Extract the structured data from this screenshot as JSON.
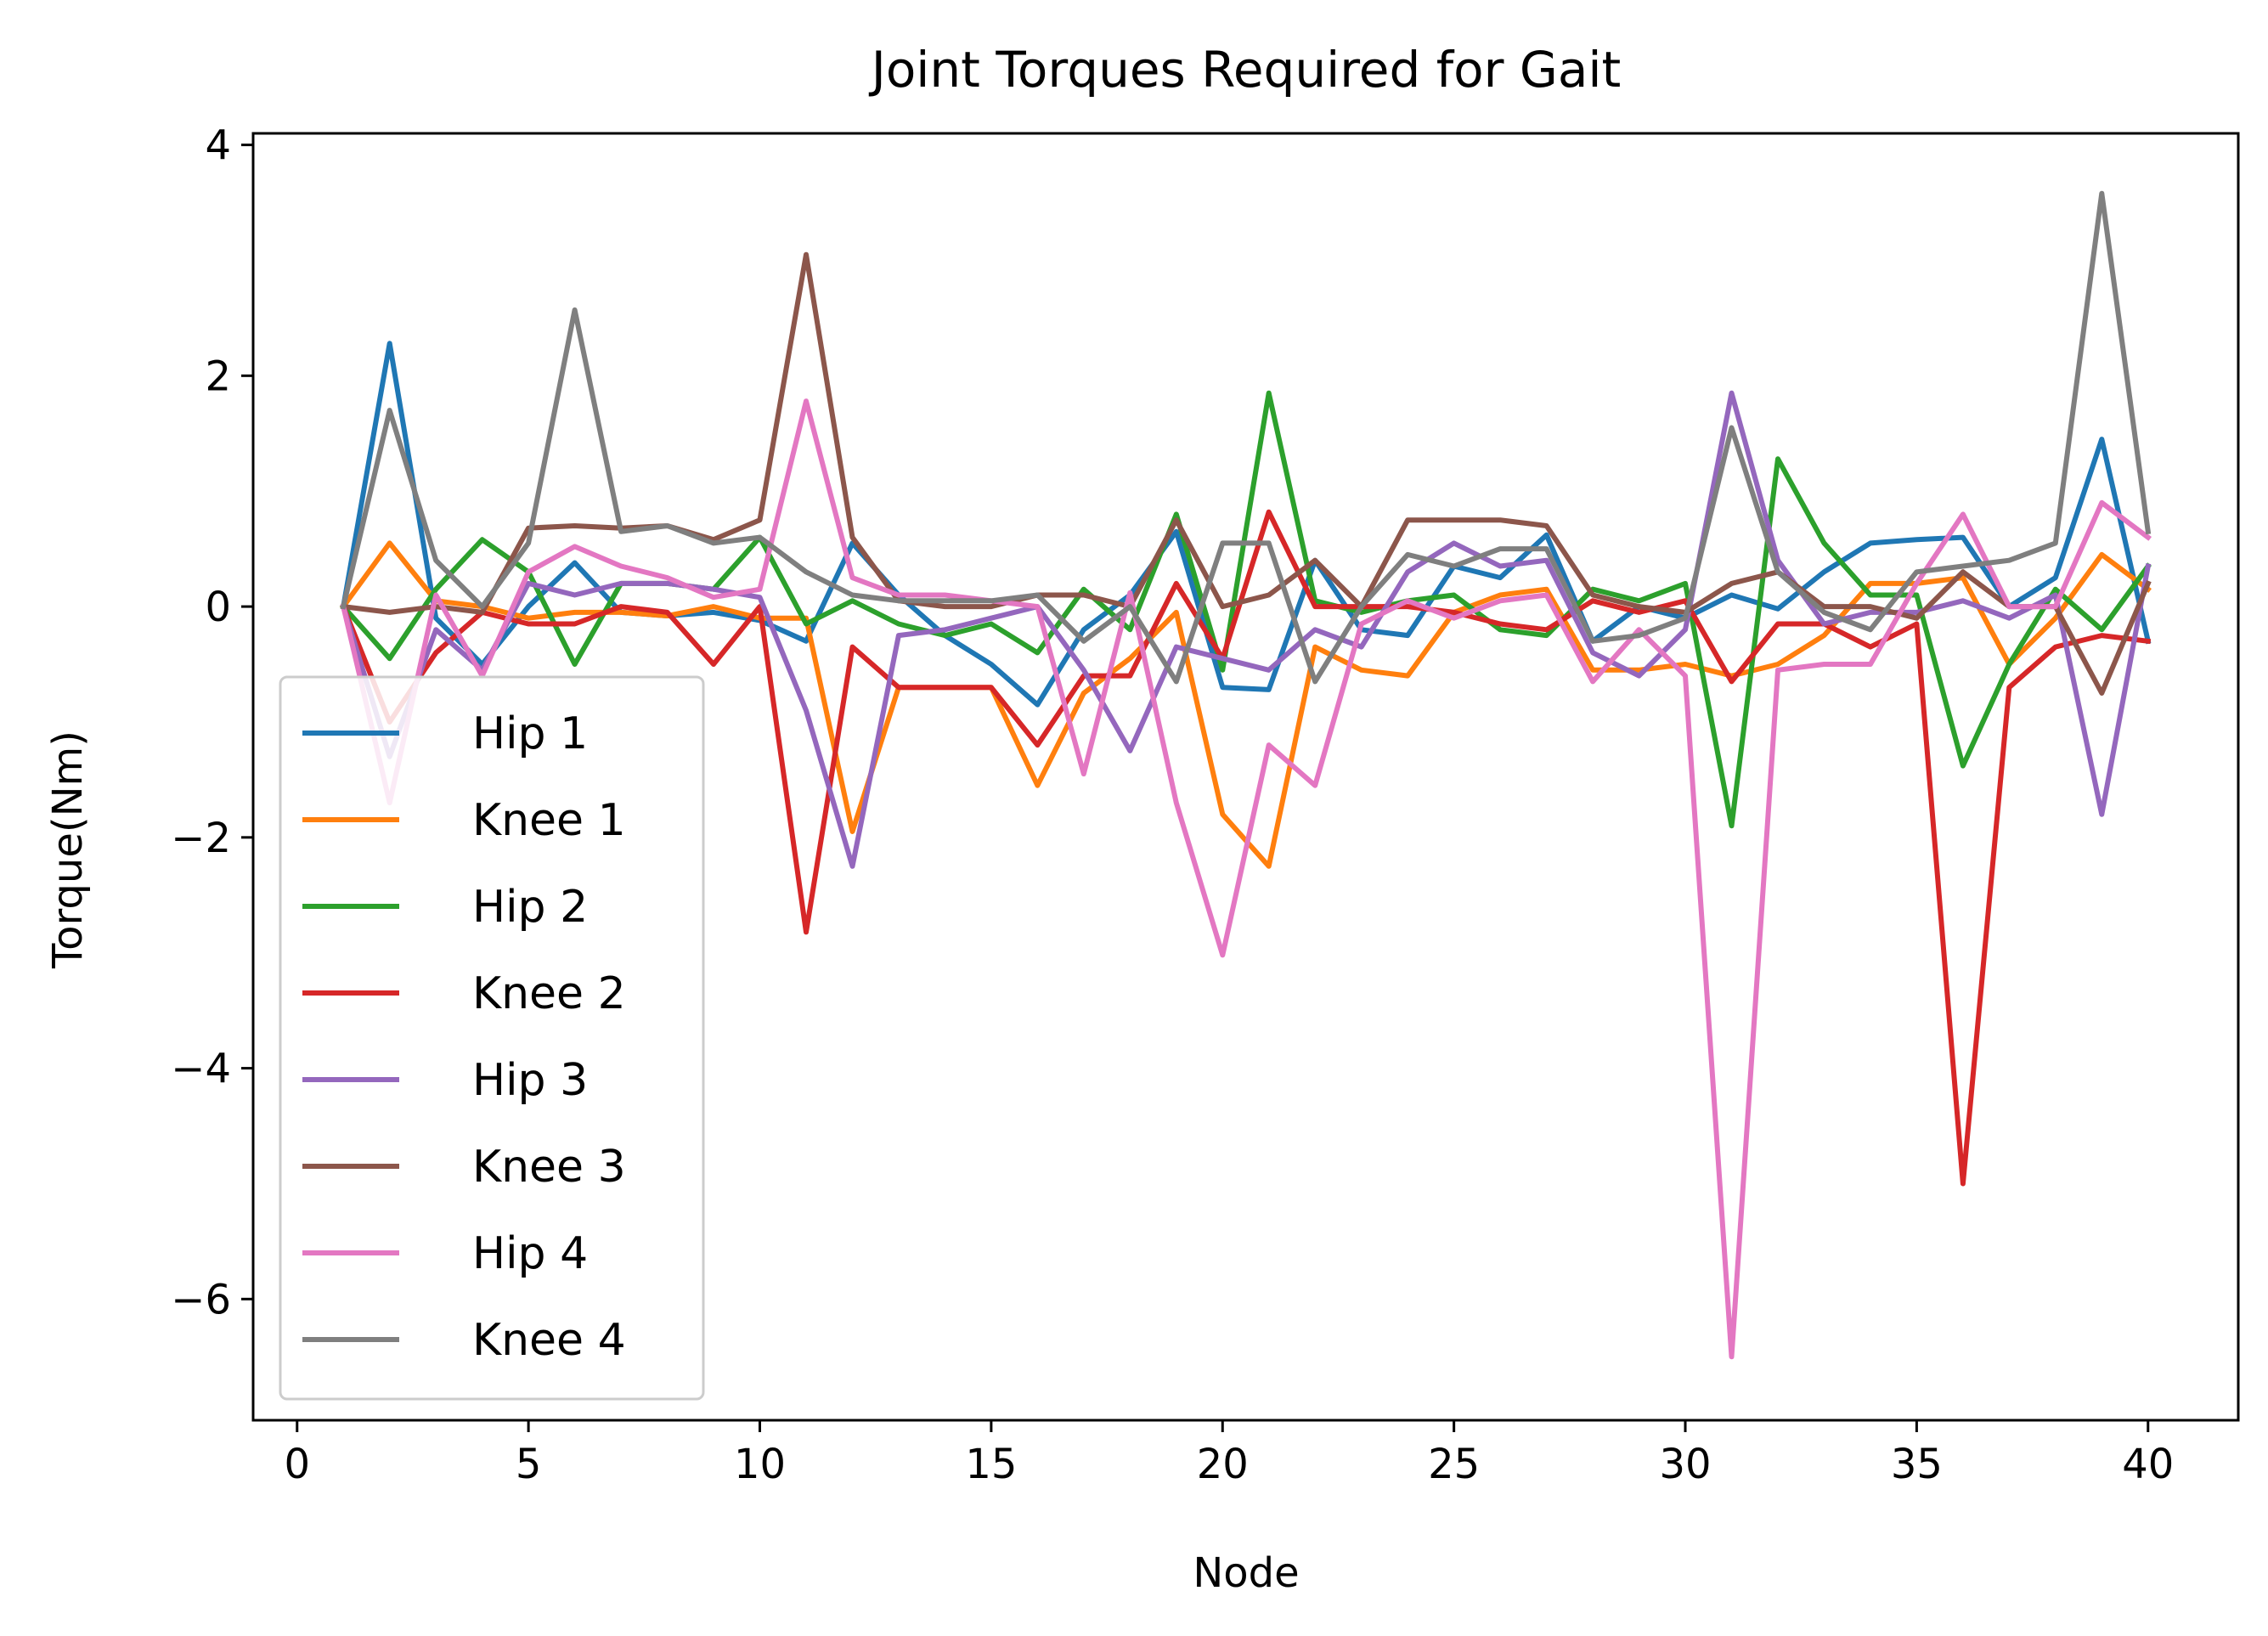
{
  "chart_data": {
    "type": "line",
    "title": "Joint Torques Required for Gait",
    "xlabel": "Node",
    "ylabel": "Torque(Nm)",
    "xlim": [
      -0.95,
      41.95
    ],
    "ylim": [
      -7.05,
      4.1
    ],
    "xticks": [
      0,
      5,
      10,
      15,
      20,
      25,
      30,
      35,
      40
    ],
    "yticks": [
      4,
      2,
      0,
      -2,
      -4,
      -6
    ],
    "ytick_labels": [
      "4",
      "2",
      "0",
      "−2",
      "−4",
      "−6"
    ],
    "grid": false,
    "legend_position": "lower-left",
    "x": [
      1,
      2,
      3,
      4,
      5,
      6,
      7,
      8,
      9,
      10,
      11,
      12,
      13,
      14,
      15,
      16,
      17,
      18,
      19,
      20,
      21,
      22,
      23,
      24,
      25,
      26,
      27,
      28,
      29,
      30,
      31,
      32,
      33,
      34,
      35,
      36,
      37,
      38,
      39,
      40
    ],
    "series": [
      {
        "name": "Hip 1",
        "color": "#1f77b4",
        "values": [
          0.0,
          2.28,
          -0.1,
          -0.5,
          0.0,
          0.38,
          -0.05,
          -0.08,
          -0.05,
          -0.12,
          -0.3,
          0.55,
          0.1,
          -0.25,
          -0.5,
          -0.85,
          -0.2,
          0.1,
          0.65,
          -0.7,
          -0.72,
          0.4,
          -0.2,
          -0.25,
          0.35,
          0.25,
          0.62,
          -0.3,
          0.0,
          -0.1,
          0.1,
          -0.02,
          0.3,
          0.55,
          0.58,
          0.6,
          0.0,
          0.25,
          1.45,
          -0.3
        ]
      },
      {
        "name": "Knee 1",
        "color": "#ff7f0e",
        "values": [
          0.0,
          0.55,
          0.05,
          0.0,
          -0.1,
          -0.05,
          -0.05,
          -0.08,
          0.0,
          -0.1,
          -0.1,
          -1.95,
          -0.7,
          -0.7,
          -0.7,
          -1.55,
          -0.75,
          -0.45,
          -0.05,
          -1.8,
          -2.25,
          -0.35,
          -0.55,
          -0.6,
          -0.05,
          0.1,
          0.15,
          -0.55,
          -0.55,
          -0.5,
          -0.6,
          -0.5,
          -0.25,
          0.2,
          0.2,
          0.25,
          -0.5,
          -0.1,
          0.45,
          0.15
        ]
      },
      {
        "name": "Hip 2",
        "color": "#2ca02c",
        "values": [
          0.0,
          -0.45,
          0.15,
          0.58,
          0.3,
          -0.5,
          0.2,
          0.2,
          0.15,
          0.6,
          -0.15,
          0.05,
          -0.15,
          -0.25,
          -0.15,
          -0.4,
          0.15,
          -0.2,
          0.8,
          -0.55,
          1.85,
          0.05,
          -0.05,
          0.05,
          0.1,
          -0.2,
          -0.25,
          0.15,
          0.05,
          0.2,
          -1.9,
          1.28,
          0.55,
          0.1,
          0.1,
          -1.38,
          -0.5,
          0.15,
          -0.2,
          0.35
        ]
      },
      {
        "name": "Knee 2",
        "color": "#d62728",
        "values": [
          0.0,
          -1.0,
          -0.4,
          -0.05,
          -0.15,
          -0.15,
          0.0,
          -0.05,
          -0.5,
          0.0,
          -2.82,
          -0.35,
          -0.7,
          -0.7,
          -0.7,
          -1.2,
          -0.6,
          -0.6,
          0.2,
          -0.45,
          0.82,
          0.0,
          0.0,
          0.0,
          -0.05,
          -0.15,
          -0.2,
          0.05,
          -0.05,
          0.05,
          -0.65,
          -0.15,
          -0.15,
          -0.35,
          -0.15,
          -5.0,
          -0.7,
          -0.35,
          -0.25,
          -0.3
        ]
      },
      {
        "name": "Hip 3",
        "color": "#9467bd",
        "values": [
          0.0,
          -1.3,
          -0.2,
          -0.55,
          0.2,
          0.1,
          0.2,
          0.2,
          0.15,
          0.08,
          -0.9,
          -2.25,
          -0.25,
          -0.2,
          -0.1,
          0.0,
          -0.55,
          -1.25,
          -0.35,
          -0.45,
          -0.55,
          -0.2,
          -0.35,
          0.3,
          0.55,
          0.35,
          0.4,
          -0.4,
          -0.6,
          -0.2,
          1.85,
          0.4,
          -0.15,
          -0.05,
          -0.05,
          0.05,
          -0.1,
          0.1,
          -1.8,
          0.35
        ]
      },
      {
        "name": "Knee 3",
        "color": "#8c564b",
        "values": [
          0.0,
          -0.05,
          0.0,
          -0.05,
          0.68,
          0.7,
          0.68,
          0.7,
          0.58,
          0.75,
          3.05,
          0.6,
          0.05,
          0.0,
          0.0,
          0.1,
          0.1,
          0.0,
          0.75,
          0.0,
          0.1,
          0.4,
          0.0,
          0.75,
          0.75,
          0.75,
          0.7,
          0.1,
          0.0,
          -0.05,
          0.2,
          0.3,
          0.0,
          0.0,
          -0.1,
          0.3,
          0.0,
          0.0,
          -0.75,
          0.2
        ]
      },
      {
        "name": "Hip 4",
        "color": "#e377c2",
        "values": [
          0.0,
          -1.7,
          0.1,
          -0.6,
          0.3,
          0.52,
          0.35,
          0.25,
          0.08,
          0.15,
          1.78,
          0.25,
          0.1,
          0.1,
          0.05,
          0.0,
          -1.45,
          0.12,
          -1.7,
          -3.02,
          -1.2,
          -1.55,
          -0.15,
          0.05,
          -0.1,
          0.05,
          0.1,
          -0.65,
          -0.2,
          -0.6,
          -6.5,
          -0.55,
          -0.5,
          -0.5,
          0.2,
          0.8,
          0.0,
          0.0,
          0.9,
          0.6
        ]
      },
      {
        "name": "Knee 4",
        "color": "#7f7f7f",
        "values": [
          0.0,
          1.7,
          0.4,
          0.0,
          0.55,
          2.57,
          0.65,
          0.7,
          0.55,
          0.6,
          0.3,
          0.1,
          0.05,
          0.05,
          0.05,
          0.1,
          -0.3,
          0.0,
          -0.65,
          0.55,
          0.55,
          -0.65,
          0.0,
          0.45,
          0.35,
          0.5,
          0.5,
          -0.3,
          -0.25,
          -0.1,
          1.55,
          0.3,
          -0.05,
          -0.2,
          0.3,
          0.35,
          0.4,
          0.55,
          3.58,
          0.65
        ]
      }
    ]
  }
}
